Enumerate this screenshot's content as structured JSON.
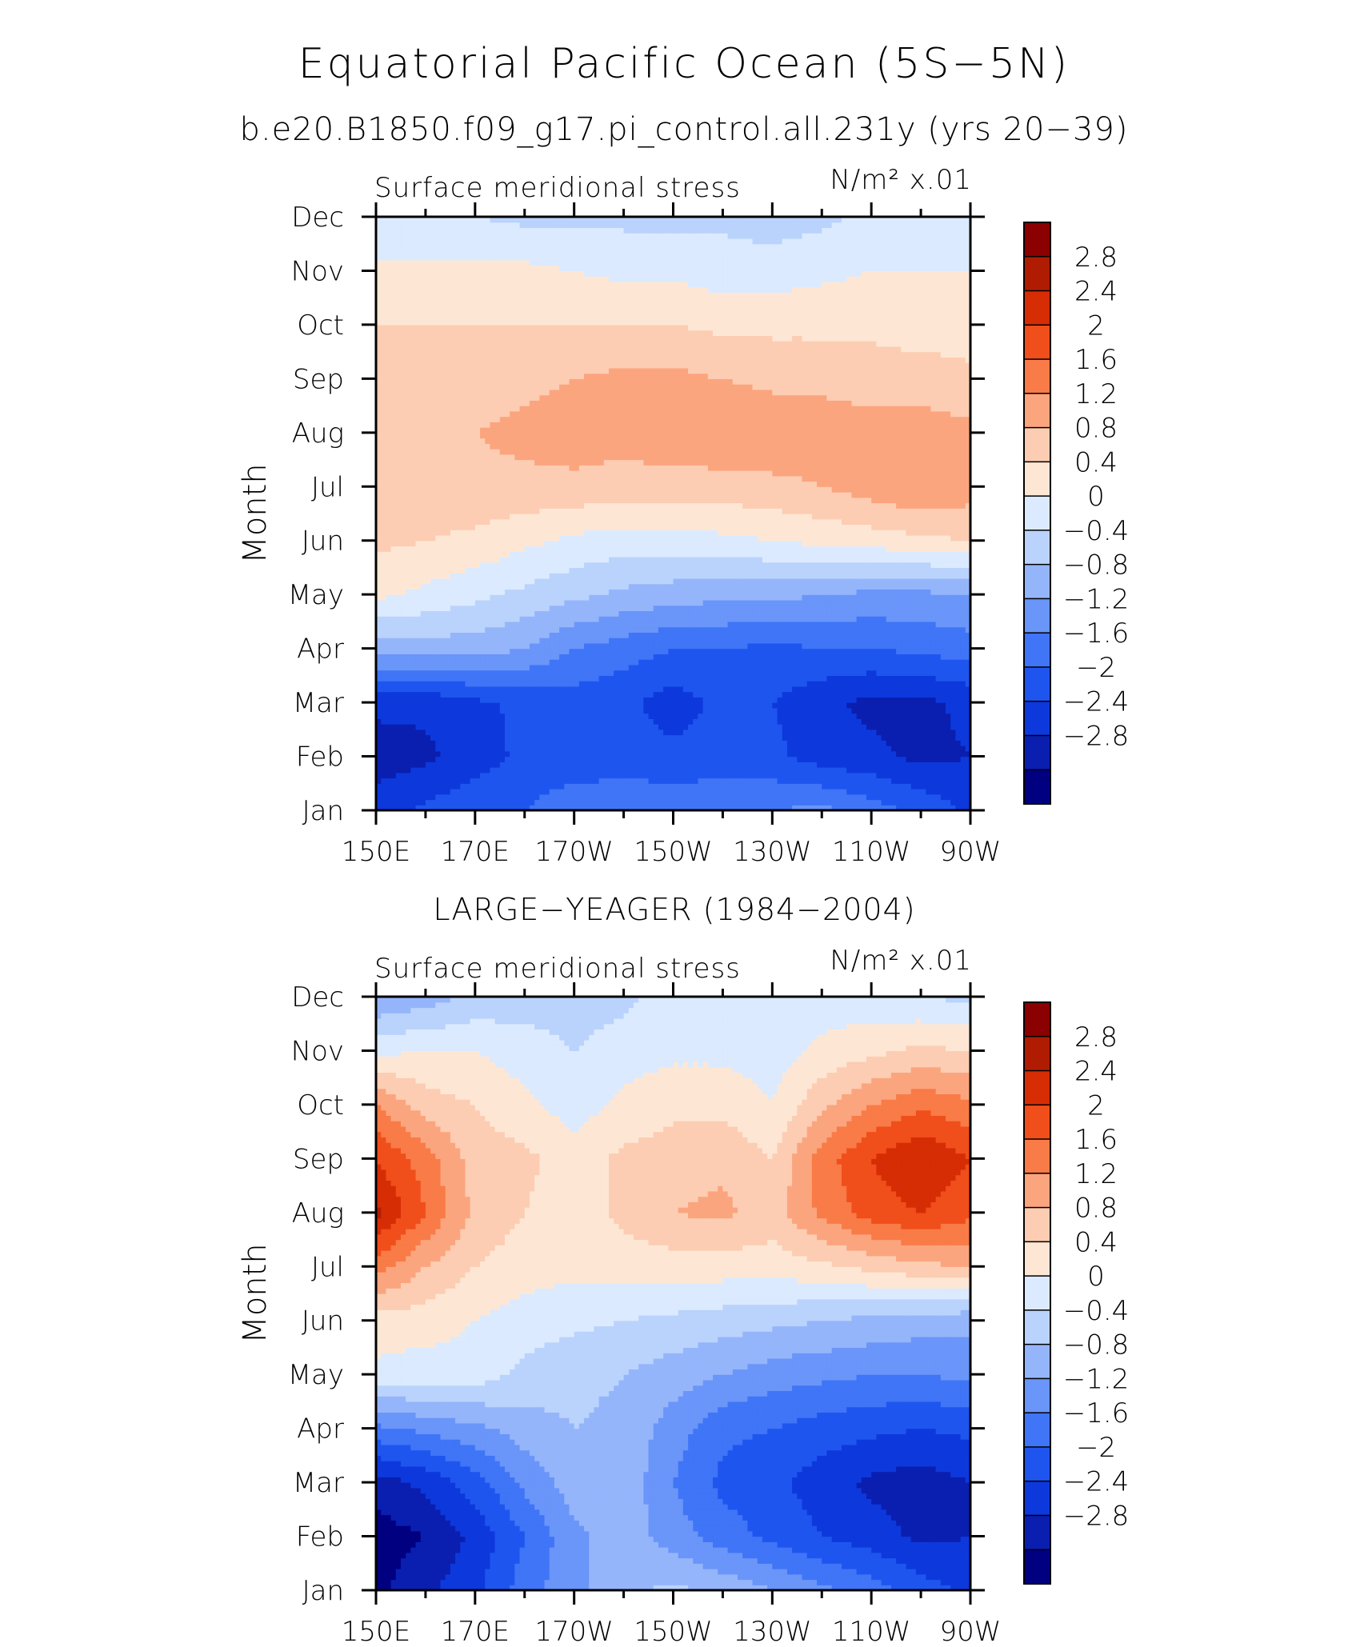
{
  "figure": {
    "title": "Equatorial Pacific Ocean (5S−5N)",
    "subtitle": "b.e20.B1850.f09_g17.pi_control.all.231y (yrs 20−39)"
  },
  "levels": [
    -2.8,
    -2.4,
    -2,
    -1.6,
    -1.2,
    -0.8,
    -0.4,
    0,
    0.4,
    0.8,
    1.2,
    1.6,
    2,
    2.4,
    2.8
  ],
  "colors": [
    "#000080",
    "#0a1fb0",
    "#0d39dc",
    "#1f55ef",
    "#3f75f6",
    "#6a95f9",
    "#95b5fb",
    "#bad3fc",
    "#dbeafe",
    "#fde7d4",
    "#fccdb3",
    "#fba57e",
    "#f97b47",
    "#f04e1a",
    "#d62d05",
    "#b01c02",
    "#8b0000"
  ],
  "chart_data": [
    {
      "type": "heatmap",
      "panel_title": "",
      "left_label": "Surface meridional stress",
      "right_label": "N/m² x.01",
      "ylabel": "Month",
      "x_ticks": [
        "150E",
        "170E",
        "170W",
        "150W",
        "130W",
        "110W",
        "90W"
      ],
      "y_ticks": [
        "Jan",
        "Feb",
        "Mar",
        "Apr",
        "May",
        "Jun",
        "Jul",
        "Aug",
        "Sep",
        "Oct",
        "Nov",
        "Dec"
      ],
      "colorbar_labels": [
        "2.8",
        "2.4",
        "2",
        "1.6",
        "1.2",
        "0.8",
        "0.4",
        "0",
        "−0.4",
        "−0.8",
        "−1.2",
        "−1.6",
        "−2",
        "−2.4",
        "−2.8"
      ],
      "x_lon_east": [
        150,
        160,
        170,
        180,
        190,
        200,
        210,
        220,
        230,
        240,
        250,
        260,
        270
      ],
      "values": [
        [
          -2.2,
          -1.9,
          -1.7,
          -1.6,
          -1.3,
          -1.3,
          -1.3,
          -1.3,
          -1.2,
          -1.1,
          -1.4,
          -1.7,
          -2.1
        ],
        [
          -2.6,
          -2.5,
          -2.2,
          -1.9,
          -1.9,
          -1.8,
          -1.9,
          -1.8,
          -1.9,
          -2.2,
          -2.3,
          -2.5,
          -2.4
        ],
        [
          -2.3,
          -2.3,
          -2.1,
          -1.9,
          -1.8,
          -1.9,
          -2.2,
          -1.9,
          -2.0,
          -2.3,
          -2.5,
          -2.5,
          -2.3
        ],
        [
          -0.6,
          -0.6,
          -0.6,
          -0.8,
          -1.2,
          -1.4,
          -1.6,
          -1.6,
          -1.7,
          -1.6,
          -1.6,
          -1.5,
          -1.4
        ],
        [
          0.5,
          0.3,
          0.1,
          -0.1,
          -0.3,
          -0.5,
          -0.6,
          -0.7,
          -0.7,
          -0.8,
          -0.9,
          -0.9,
          -0.8
        ],
        [
          0.9,
          0.8,
          0.7,
          0.5,
          0.3,
          0.2,
          0.2,
          0.3,
          0.4,
          0.5,
          0.6,
          0.7,
          0.8
        ],
        [
          1.1,
          1.1,
          1.1,
          1.1,
          1.1,
          1.0,
          1.0,
          1.0,
          1.1,
          1.2,
          1.4,
          1.6,
          1.4
        ],
        [
          1.2,
          1.1,
          1.2,
          1.3,
          1.4,
          1.4,
          1.5,
          1.6,
          1.5,
          1.4,
          1.4,
          1.4,
          1.3
        ],
        [
          1.1,
          1.0,
          1.0,
          1.1,
          1.2,
          1.3,
          1.3,
          1.2,
          1.1,
          1.1,
          1.0,
          1.0,
          0.9
        ],
        [
          0.8,
          0.8,
          0.8,
          0.8,
          0.8,
          0.8,
          0.8,
          0.7,
          0.7,
          0.7,
          0.7,
          0.6,
          0.6
        ],
        [
          0.5,
          0.5,
          0.5,
          0.5,
          0.4,
          0.3,
          0.3,
          0.2,
          0.2,
          0.3,
          0.4,
          0.4,
          0.4
        ],
        [
          0.1,
          0.0,
          0.0,
          -0.1,
          -0.1,
          -0.1,
          -0.1,
          -0.1,
          -0.2,
          -0.1,
          0.1,
          0.2,
          0.2
        ]
      ]
    },
    {
      "type": "heatmap",
      "panel_title": "LARGE−YEAGER (1984−2004)",
      "left_label": "Surface meridional stress",
      "right_label": "N/m² x.01",
      "ylabel": "Month",
      "x_ticks": [
        "150E",
        "170E",
        "170W",
        "150W",
        "130W",
        "110W",
        "90W"
      ],
      "y_ticks": [
        "Jan",
        "Feb",
        "Mar",
        "Apr",
        "May",
        "Jun",
        "Jul",
        "Aug",
        "Sep",
        "Oct",
        "Nov",
        "Dec"
      ],
      "colorbar_labels": [
        "2.8",
        "2.4",
        "2",
        "1.6",
        "1.2",
        "0.8",
        "0.4",
        "0",
        "−0.4",
        "−0.8",
        "−1.2",
        "−1.6",
        "−2",
        "−2.4",
        "−2.8"
      ],
      "x_lon_east": [
        150,
        160,
        170,
        180,
        190,
        200,
        210,
        220,
        230,
        240,
        250,
        260,
        270
      ],
      "values": [
        [
          -2.9,
          -2.5,
          -2.1,
          -1.4,
          -0.9,
          -0.5,
          -0.3,
          -0.5,
          -0.8,
          -1.1,
          -1.4,
          -1.8,
          -2.1
        ],
        [
          -3.0,
          -2.8,
          -2.3,
          -1.6,
          -0.9,
          -0.6,
          -1.0,
          -1.4,
          -1.7,
          -2.0,
          -2.2,
          -2.5,
          -2.4
        ],
        [
          -2.6,
          -2.3,
          -1.8,
          -1.1,
          -0.6,
          -0.5,
          -1.2,
          -1.7,
          -1.9,
          -2.2,
          -2.5,
          -2.6,
          -2.4
        ],
        [
          -1.3,
          -1.1,
          -0.9,
          -0.6,
          -0.4,
          -0.5,
          -1.0,
          -1.5,
          -1.6,
          -1.8,
          -1.9,
          -2.0,
          -1.9
        ],
        [
          0.3,
          0.2,
          0.2,
          -0.1,
          -0.3,
          -0.4,
          -0.6,
          -0.8,
          -1.0,
          -1.1,
          -1.2,
          -1.2,
          -1.1
        ],
        [
          0.6,
          0.6,
          0.4,
          0.2,
          0.1,
          0.0,
          -0.1,
          -0.2,
          -0.3,
          -0.4,
          -0.5,
          -0.6,
          -0.7
        ],
        [
          1.8,
          1.2,
          0.8,
          0.6,
          0.5,
          0.6,
          0.6,
          0.6,
          0.6,
          0.7,
          0.9,
          1.1,
          1.2
        ],
        [
          2.9,
          2.0,
          1.1,
          0.8,
          0.6,
          0.9,
          1.2,
          1.3,
          1.0,
          1.7,
          2.2,
          2.4,
          2.1
        ],
        [
          2.4,
          1.8,
          1.0,
          0.9,
          0.6,
          0.9,
          1.0,
          1.1,
          0.8,
          1.8,
          2.4,
          2.8,
          2.4
        ],
        [
          1.6,
          1.0,
          0.8,
          0.5,
          0.2,
          0.5,
          0.7,
          0.7,
          0.4,
          1.1,
          1.6,
          1.9,
          1.7
        ],
        [
          0.3,
          0.4,
          0.4,
          0.2,
          0.0,
          0.2,
          0.3,
          0.3,
          0.2,
          0.5,
          0.7,
          0.9,
          0.8
        ],
        [
          -0.8,
          -0.6,
          -0.3,
          -0.2,
          -0.2,
          -0.1,
          0.2,
          0.4,
          0.3,
          0.2,
          0.1,
          0.0,
          -0.1
        ]
      ]
    }
  ]
}
